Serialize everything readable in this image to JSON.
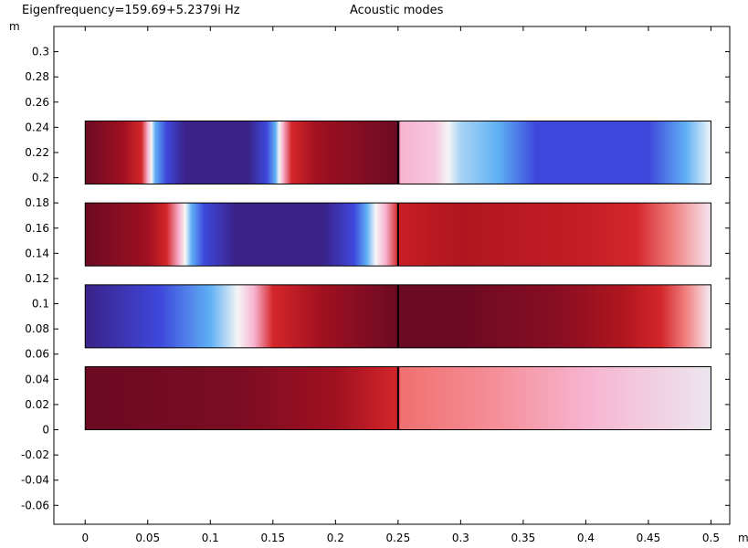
{
  "header": {
    "eigenfrequency": "Eigenfrequency=159.69+5.2379i Hz",
    "title": "Acoustic modes"
  },
  "colors": {
    "dark_red": "#6b0a23",
    "red": "#d4262a",
    "light_pink": "#f7b3cf",
    "white": "#f5f5f5",
    "light_blue": "#5fb0f5",
    "blue": "#3e48dc",
    "dark_purple": "#3a2288"
  },
  "chart_data": {
    "type": "heatmap",
    "xlabel": "m",
    "ylabel": "m",
    "xlim": [
      -0.025,
      0.515
    ],
    "ylim": [
      -0.075,
      0.32
    ],
    "x_ticks": [
      0,
      0.05,
      0.1,
      0.15,
      0.2,
      0.25,
      0.3,
      0.35,
      0.4,
      0.45,
      0.5
    ],
    "x_tick_labels": [
      "0",
      "0.05",
      "0.1",
      "0.15",
      "0.2",
      "0.25",
      "0.3",
      "0.35",
      "0.4",
      "0.45",
      "0.5"
    ],
    "y_ticks": [
      -0.06,
      -0.04,
      -0.02,
      0,
      0.02,
      0.04,
      0.06,
      0.08,
      0.1,
      0.12,
      0.14,
      0.16,
      0.18,
      0.2,
      0.22,
      0.24,
      0.26,
      0.28,
      0.3
    ],
    "y_tick_labels": [
      "-0.06",
      "-0.04",
      "-0.02",
      "0",
      "0.02",
      "0.04",
      "0.06",
      "0.08",
      "0.1",
      "0.12",
      "0.14",
      "0.16",
      "0.18",
      "0.2",
      "0.22",
      "0.24",
      "0.26",
      "0.28",
      "0.3"
    ],
    "divider_x": 0.25,
    "domains": [
      {
        "y0": 0.195,
        "y1": 0.245,
        "stops": [
          [
            0,
            "#6b0a23"
          ],
          [
            0.03,
            "#a01020"
          ],
          [
            0.045,
            "#d4262a"
          ],
          [
            0.05,
            "#f7b3cf"
          ],
          [
            0.053,
            "#f5f5f5"
          ],
          [
            0.056,
            "#5fb0f5"
          ],
          [
            0.065,
            "#3e48dc"
          ],
          [
            0.08,
            "#3a2288"
          ],
          [
            0.13,
            "#3a2288"
          ],
          [
            0.145,
            "#3e48dc"
          ],
          [
            0.152,
            "#5fb0f5"
          ],
          [
            0.155,
            "#f5f5f5"
          ],
          [
            0.158,
            "#f7b3cf"
          ],
          [
            0.165,
            "#d4262a"
          ],
          [
            0.185,
            "#a01020"
          ],
          [
            0.25,
            "#6b0a23"
          ],
          [
            0.252,
            "#f7b3cf"
          ],
          [
            0.28,
            "#f5c8dd"
          ],
          [
            0.29,
            "#f5f5f5"
          ],
          [
            0.3,
            "#a8d4f5"
          ],
          [
            0.33,
            "#5fb0f5"
          ],
          [
            0.36,
            "#3e48dc"
          ],
          [
            0.45,
            "#3e48dc"
          ],
          [
            0.48,
            "#5fb0f5"
          ],
          [
            0.5,
            "#f0f5fa"
          ]
        ]
      },
      {
        "y0": 0.13,
        "y1": 0.18,
        "stops": [
          [
            0,
            "#6b0a23"
          ],
          [
            0.05,
            "#a01020"
          ],
          [
            0.065,
            "#d4262a"
          ],
          [
            0.075,
            "#f7b3cf"
          ],
          [
            0.08,
            "#f5f5f5"
          ],
          [
            0.085,
            "#5fb0f5"
          ],
          [
            0.095,
            "#3e48dc"
          ],
          [
            0.12,
            "#3a2288"
          ],
          [
            0.19,
            "#3a2288"
          ],
          [
            0.215,
            "#3e48dc"
          ],
          [
            0.225,
            "#5fb0f5"
          ],
          [
            0.232,
            "#f5f5f5"
          ],
          [
            0.24,
            "#f7b3cf"
          ],
          [
            0.25,
            "#d4262a"
          ],
          [
            0.252,
            "#c81e25"
          ],
          [
            0.3,
            "#b0161f"
          ],
          [
            0.4,
            "#c41e26"
          ],
          [
            0.44,
            "#d4262a"
          ],
          [
            0.47,
            "#f08080"
          ],
          [
            0.5,
            "#f5e6f0"
          ]
        ]
      },
      {
        "y0": 0.065,
        "y1": 0.115,
        "stops": [
          [
            0,
            "#3a2288"
          ],
          [
            0.06,
            "#3e48dc"
          ],
          [
            0.1,
            "#5fb0f5"
          ],
          [
            0.122,
            "#f5f5f5"
          ],
          [
            0.135,
            "#f7b3cf"
          ],
          [
            0.15,
            "#d4262a"
          ],
          [
            0.19,
            "#a01020"
          ],
          [
            0.25,
            "#6b0a23"
          ],
          [
            0.3,
            "#6b0a23"
          ],
          [
            0.38,
            "#8a0e22"
          ],
          [
            0.43,
            "#b0161f"
          ],
          [
            0.46,
            "#d4262a"
          ],
          [
            0.48,
            "#f08080"
          ],
          [
            0.5,
            "#f5eef5"
          ]
        ]
      },
      {
        "y0": 0,
        "y1": 0.05,
        "stops": [
          [
            0,
            "#6b0a23"
          ],
          [
            0.12,
            "#7a0c22"
          ],
          [
            0.2,
            "#a01020"
          ],
          [
            0.25,
            "#d4262a"
          ],
          [
            0.252,
            "#f07070"
          ],
          [
            0.33,
            "#f5909a"
          ],
          [
            0.4,
            "#f7b3cf"
          ],
          [
            0.5,
            "#ece6ef"
          ]
        ]
      }
    ]
  }
}
